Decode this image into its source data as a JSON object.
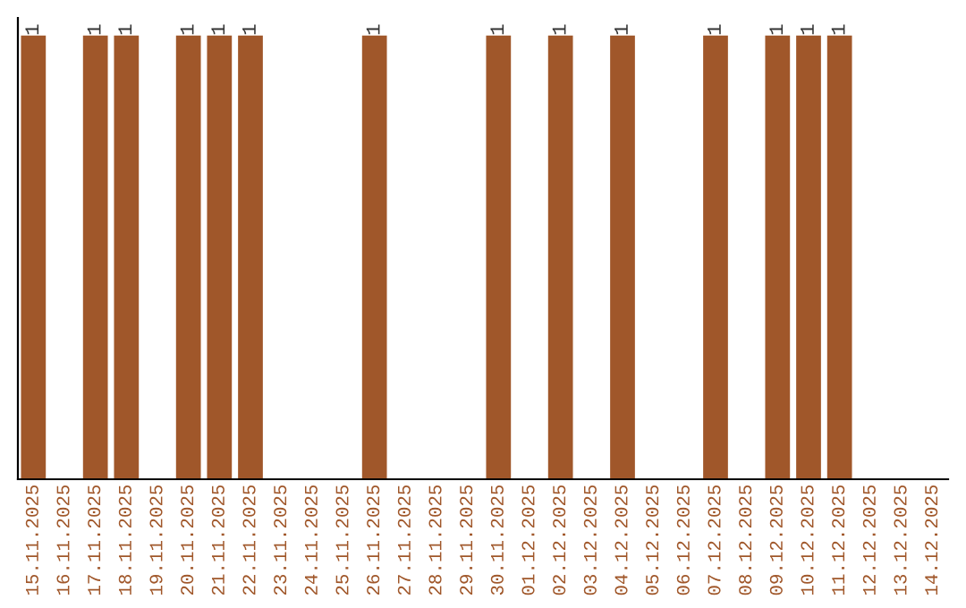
{
  "chart_data": {
    "type": "bar",
    "categories": [
      "15.11.2025",
      "16.11.2025",
      "17.11.2025",
      "18.11.2025",
      "19.11.2025",
      "20.11.2025",
      "21.11.2025",
      "22.11.2025",
      "23.11.2025",
      "24.11.2025",
      "25.11.2025",
      "26.11.2025",
      "27.11.2025",
      "28.11.2025",
      "29.11.2025",
      "30.11.2025",
      "01.12.2025",
      "02.12.2025",
      "03.12.2025",
      "04.12.2025",
      "05.12.2025",
      "06.12.2025",
      "07.12.2025",
      "08.12.2025",
      "09.12.2025",
      "10.12.2025",
      "11.12.2025",
      "12.12.2025",
      "13.12.2025",
      "14.12.2025"
    ],
    "values": [
      1,
      0,
      1,
      1,
      0,
      1,
      1,
      1,
      0,
      0,
      0,
      1,
      0,
      0,
      0,
      1,
      0,
      1,
      0,
      1,
      0,
      0,
      1,
      0,
      1,
      1,
      1,
      0,
      0,
      0
    ],
    "value_labels": [
      "1",
      null,
      "1",
      "1",
      null,
      "1",
      "1",
      "1",
      null,
      null,
      null,
      "1",
      null,
      null,
      null,
      "1",
      null,
      "1",
      null,
      "1",
      null,
      null,
      "1",
      null,
      "1",
      "1",
      "1",
      null,
      null,
      null
    ],
    "color": "#a0572a",
    "tick_labels": "x",
    "grid": false,
    "legend": false
  }
}
